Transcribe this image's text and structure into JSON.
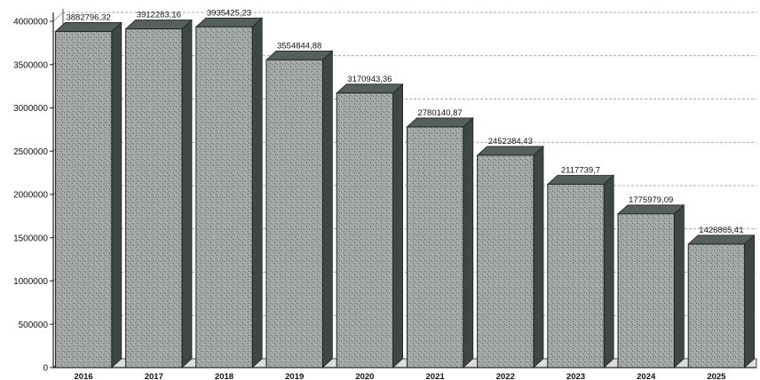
{
  "chart_data": {
    "type": "bar",
    "title": "",
    "xlabel": "",
    "ylabel": "",
    "categories": [
      "2016",
      "2017",
      "2018",
      "2019",
      "2020",
      "2021",
      "2022",
      "2023",
      "2024",
      "2025"
    ],
    "values": [
      3882796.32,
      3912283.16,
      3935425.23,
      3554844.88,
      3170943.36,
      2780140.87,
      2452384.43,
      2117739.7,
      1775979.09,
      1426865.41
    ],
    "data_labels": [
      "3882796,32",
      "3912283,16",
      "3935425,23",
      "3554844,88",
      "3170943,36",
      "2780140,87",
      "2452384,43",
      "2117739,7",
      "1775979,09",
      "1426865,41"
    ],
    "ylim": [
      0,
      4000000
    ],
    "y_ticks": [
      0,
      500000,
      1000000,
      1500000,
      2000000,
      2500000,
      3000000,
      3500000,
      4000000
    ],
    "y_tick_labels": [
      "0",
      "500000",
      "1000000",
      "1500000",
      "2000000",
      "2500000",
      "3000000",
      "3500000",
      "4000000"
    ],
    "grid": true,
    "style": "3d-column",
    "colors": {
      "bar_front": "#9ea3a0",
      "bar_side": "#3f4745",
      "bar_top": "#55605d",
      "bar_edge": "#1d2322",
      "grid": "#8a8a8a",
      "axis": "#222222",
      "floor": "#dcdcdc"
    }
  }
}
